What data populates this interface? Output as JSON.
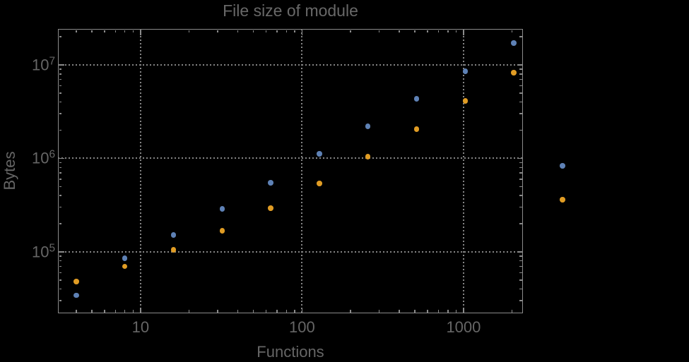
{
  "chart_data": {
    "type": "scatter",
    "title": "File size of module",
    "xlabel": "Functions",
    "ylabel": "Bytes",
    "xscale": "log",
    "yscale": "log",
    "xlim": [
      3.08,
      2333
    ],
    "ylim": [
      22000,
      24260000
    ],
    "grid": true,
    "grid_style": "dotted",
    "legend": "none",
    "x_ticks": [
      {
        "value": 10,
        "label": "10"
      },
      {
        "value": 100,
        "label": "100"
      },
      {
        "value": 1000,
        "label": "1000"
      }
    ],
    "y_ticks": [
      {
        "value": 100000,
        "label": "10^5"
      },
      {
        "value": 1000000,
        "label": "10^6"
      },
      {
        "value": 10000000,
        "label": "10^7"
      }
    ],
    "series": [
      {
        "name": "series-1-blue",
        "color": "#5e81b5",
        "points": [
          [
            4,
            34300
          ],
          [
            8,
            85500
          ],
          [
            16,
            152000
          ],
          [
            32,
            289000
          ],
          [
            64,
            549000
          ],
          [
            128,
            1120000
          ],
          [
            256,
            2210000
          ],
          [
            512,
            4340000
          ],
          [
            1024,
            8550000
          ],
          [
            2048,
            17100000
          ],
          [
            4096,
            833000
          ]
        ]
      },
      {
        "name": "series-2-orange",
        "color": "#e09c24",
        "points": [
          [
            4,
            48200
          ],
          [
            8,
            70000
          ],
          [
            16,
            105000
          ],
          [
            32,
            168000
          ],
          [
            64,
            294000
          ],
          [
            128,
            540000
          ],
          [
            256,
            1040000
          ],
          [
            512,
            2060000
          ],
          [
            1024,
            4120000
          ],
          [
            2048,
            8260000
          ],
          [
            4096,
            362000
          ]
        ]
      }
    ],
    "colors": {
      "background": "#000000",
      "frame": "#8b8b8b",
      "grid": "#848484",
      "text": "#666666",
      "title": "#686868"
    }
  }
}
